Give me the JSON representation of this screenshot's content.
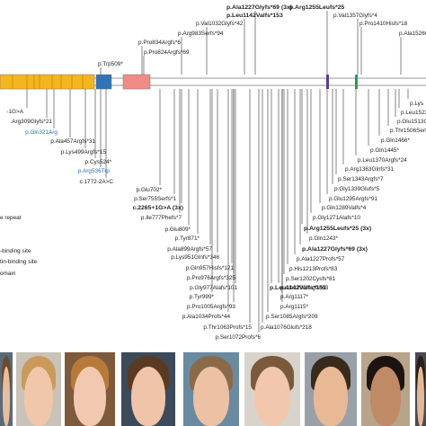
{
  "protein": {
    "domain_colors": {
      "repeat": "#f5b51f",
      "box_blue": "#2f74b5",
      "box_salmon": "#ef8c86",
      "mark_purple": "#5a3d8c",
      "mark_green": "#2e9a4f"
    },
    "legend": [
      "e repeat",
      "-binding site",
      "tin-binding site",
      "omain"
    ]
  },
  "top_variants": [
    {
      "label": "p.Ala1227Glyfs*69 (3x)",
      "bold": true
    },
    {
      "label": "p.Arg1255Leufs*25",
      "bold": true
    },
    {
      "label": "p.Leu1142Valfs*153",
      "bold": true
    },
    {
      "label": "p.Val1357Glyfs*4",
      "bold": false
    },
    {
      "label": "p.Val1032Glyfs*42",
      "bold": false
    },
    {
      "label": "p.Pro1410Hisfs*18",
      "bold": false
    },
    {
      "label": "p.Arg983Serfs*94",
      "bold": false
    },
    {
      "label": "p.Ala1526Gl",
      "bold": false
    },
    {
      "label": "p.Pro834Argfs*6",
      "bold": false
    },
    {
      "label": "p.Pro824Argfs*69",
      "bold": false
    },
    {
      "label": "p.Trp509*",
      "bold": false
    }
  ],
  "bottom_left_variants": [
    {
      "label": "-1G>A",
      "blue": false
    },
    {
      "label": ".Arg309Glyfs*21",
      "blue": false
    },
    {
      "label": "p.Gln321Arg",
      "blue": true
    },
    {
      "label": "p.Ala457Argfs*31",
      "blue": false
    },
    {
      "label": "p.Lys499Argfs*15",
      "blue": false
    },
    {
      "label": "p.Cys524*",
      "blue": false
    },
    {
      "label": "p.Arg536Trp",
      "blue": true
    },
    {
      "label": "c.1772-2A>C",
      "blue": false
    }
  ],
  "bottom_mid_variants": [
    {
      "label": "p.Glu702*",
      "bold": false
    },
    {
      "label": "p.Ser755Serfs*1",
      "bold": false
    },
    {
      "label": "c.2265+1G>A (3x)",
      "bold": true
    },
    {
      "label": "p.Ile777Phefs*7",
      "bold": false
    },
    {
      "label": "p.Glu809*",
      "bold": false
    },
    {
      "label": "p.Tyr871*",
      "bold": false
    },
    {
      "label": "p.Ala899Argfs*57",
      "bold": false
    },
    {
      "label": "p.Lys951Glnfs*346",
      "bold": false
    },
    {
      "label": "p.Gln957Hisfs*121",
      "bold": false
    },
    {
      "label": "p.Pro976Argfs*325",
      "bold": false
    },
    {
      "label": "p.Gly977Alafs*101",
      "bold": false
    },
    {
      "label": "p.Tyr999*",
      "bold": false
    },
    {
      "label": "p.Pro1005Argfs*93",
      "bold": false
    },
    {
      "label": "p.Ala1034Profs*44",
      "bold": false
    },
    {
      "label": "p.Thr1063Profs*15",
      "bold": false
    },
    {
      "label": "p.Ser1072Profs*6",
      "bold": false
    }
  ],
  "bottom_center_variants": [
    {
      "label": "p.Leu1142Valfs*153",
      "bold": true
    },
    {
      "label": "p.Arg1117*",
      "bold": false
    },
    {
      "label": "p.Arg1115*",
      "bold": false
    },
    {
      "label": "p.Ser1085Argfs*209",
      "bold": false
    },
    {
      "label": "p.Ala1076Glufs*218",
      "bold": false
    }
  ],
  "bottom_right_variants": [
    {
      "label": "p.Lys",
      "bold": false
    },
    {
      "label": "p.Leu1522Glu",
      "bold": false
    },
    {
      "label": "p.Glu1513Gly",
      "bold": false
    },
    {
      "label": "p.Thr1506Serfs",
      "bold": false
    },
    {
      "label": "p.Gln1466*",
      "bold": false
    },
    {
      "label": "p.Gln1445*",
      "bold": false
    },
    {
      "label": "p.Leu1370Argfs*24",
      "bold": false
    },
    {
      "label": "p.Arg1363Glnfs*31",
      "bold": false
    },
    {
      "label": "p.Ser1343Argfs*7",
      "bold": false
    },
    {
      "label": "p.Gly1339Glufs*5",
      "bold": false
    },
    {
      "label": "p.Glu1295Argfs*91",
      "bold": false
    },
    {
      "label": "p.Gln1289Valfs*4",
      "bold": false
    },
    {
      "label": "p.Gly1271Alafs*10",
      "bold": false
    },
    {
      "label": "p.Arg1255Leufs*25 (3x)",
      "bold": true
    },
    {
      "label": "p.Gln1243*",
      "bold": false
    },
    {
      "label": "p.Ala1227Glyfs*69 (3x)",
      "bold": true
    },
    {
      "label": "p.Ala1227Profs*57",
      "bold": false
    },
    {
      "label": "p.His1213Profs*83",
      "bold": false
    },
    {
      "label": "p.Ser1202Cysfs*81",
      "bold": false
    },
    {
      "label": "p.Ala1200Argfs*63",
      "bold": false
    }
  ],
  "photos": [
    {
      "name": "patient-photo-1",
      "bg": "#5b6a78",
      "skin": "#e6bda0",
      "hair": "#6b4a2e"
    },
    {
      "name": "patient-photo-2",
      "bg": "#c9c2b8",
      "skin": "#f0c7aa",
      "hair": "#c99a5a"
    },
    {
      "name": "patient-photo-3",
      "bg": "#7d5a3c",
      "skin": "#f2c9b0",
      "hair": "#b87a3a"
    },
    {
      "name": "patient-photo-4",
      "bg": "#3c4a5a",
      "skin": "#efc4a8",
      "hair": "#5a3a22"
    },
    {
      "name": "patient-photo-5",
      "bg": "#6a8aa0",
      "skin": "#ecc1a4",
      "hair": "#8a6a48"
    },
    {
      "name": "patient-photo-6",
      "bg": "#d8d4cc",
      "skin": "#f1c8ae",
      "hair": "#7a5a3a"
    },
    {
      "name": "patient-photo-7",
      "bg": "#9aa0a8",
      "skin": "#e9b996",
      "hair": "#3a2a1c"
    },
    {
      "name": "patient-photo-8",
      "bg": "#b8a48a",
      "skin": "#c08a66",
      "hair": "#1c1410"
    },
    {
      "name": "patient-photo-9",
      "bg": "#4a4a50",
      "skin": "#e2b898",
      "hair": "#2a1e16"
    }
  ]
}
